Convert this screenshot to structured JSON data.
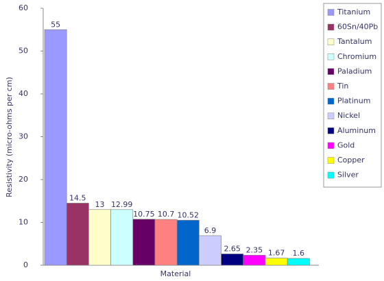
{
  "chart_data": {
    "type": "bar",
    "y_label": "Resistivity (micro-ohms per cm)",
    "categories": [
      "Material"
    ],
    "series": [
      {
        "name": "Titanium",
        "color": "#9999ff",
        "values": [
          55
        ]
      },
      {
        "name": "60Sn/40Pb",
        "color": "#993366",
        "values": [
          14.5
        ]
      },
      {
        "name": "Tantalum",
        "color": "#ffffcc",
        "values": [
          13
        ]
      },
      {
        "name": "Chromium",
        "color": "#ccffff",
        "values": [
          12.99
        ]
      },
      {
        "name": "Paladium",
        "color": "#660066",
        "values": [
          10.75
        ]
      },
      {
        "name": "Tin",
        "color": "#ff8080",
        "values": [
          10.7
        ]
      },
      {
        "name": "Platinum",
        "color": "#0066cc",
        "values": [
          10.52
        ]
      },
      {
        "name": "Nickel",
        "color": "#ccccff",
        "values": [
          6.9
        ]
      },
      {
        "name": "Aluminum",
        "color": "#000080",
        "values": [
          2.65
        ]
      },
      {
        "name": "Gold",
        "color": "#ff00ff",
        "values": [
          2.35
        ]
      },
      {
        "name": "Copper",
        "color": "#ffff00",
        "values": [
          1.67
        ]
      },
      {
        "name": "Silver",
        "color": "#00ffff",
        "values": [
          1.6
        ]
      }
    ],
    "ylim": [
      0,
      60
    ],
    "yticks": [
      0,
      10,
      20,
      30,
      40,
      50,
      60
    ],
    "legend": "right",
    "data_labels": true
  }
}
